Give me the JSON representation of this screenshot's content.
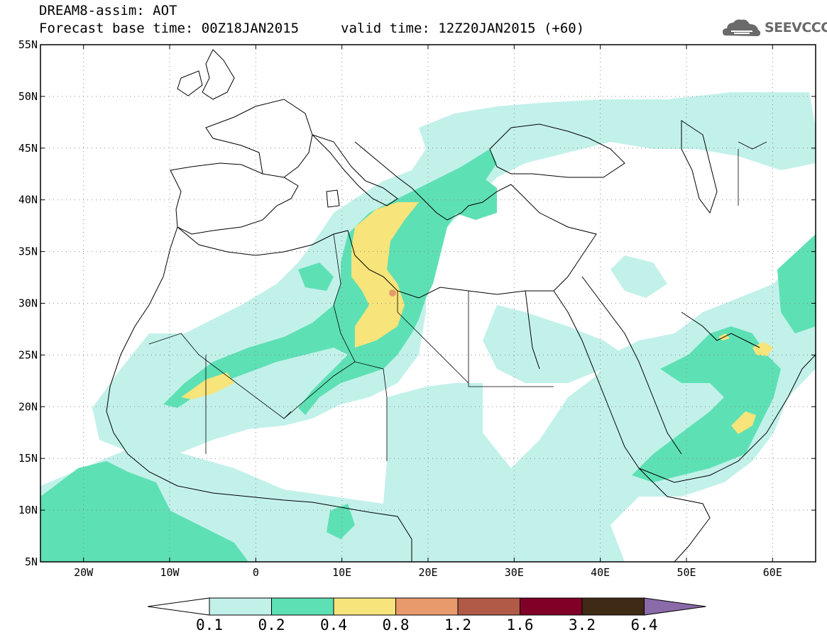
{
  "header": {
    "title": "DREAM8-assim: AOT",
    "base_time": "Forecast base time: 00Z18JAN2015",
    "valid_time": "valid time: 12Z20JAN2015 (+60)"
  },
  "logo": {
    "text": "SEEVCCC",
    "icon": "cloud-icon"
  },
  "map": {
    "lon_range": [
      -25,
      65
    ],
    "lat_range": [
      5,
      55
    ],
    "lat_labels": [
      "55N",
      "50N",
      "45N",
      "40N",
      "35N",
      "30N",
      "25N",
      "20N",
      "15N",
      "10N",
      "5N"
    ],
    "lon_labels": [
      "20W",
      "10W",
      "0",
      "10E",
      "20E",
      "30E",
      "40E",
      "50E",
      "60E"
    ],
    "grid": "dotted"
  },
  "legend": {
    "levels": [
      "0.1",
      "0.2",
      "0.4",
      "0.8",
      "1.2",
      "1.6",
      "3.2",
      "6.4"
    ],
    "colors": [
      "#ffffff",
      "#c2f1ea",
      "#5ee0b5",
      "#f7e47a",
      "#e89a6c",
      "#b05a47",
      "#800028",
      "#3f2a16",
      "#8a6aa8"
    ]
  }
}
